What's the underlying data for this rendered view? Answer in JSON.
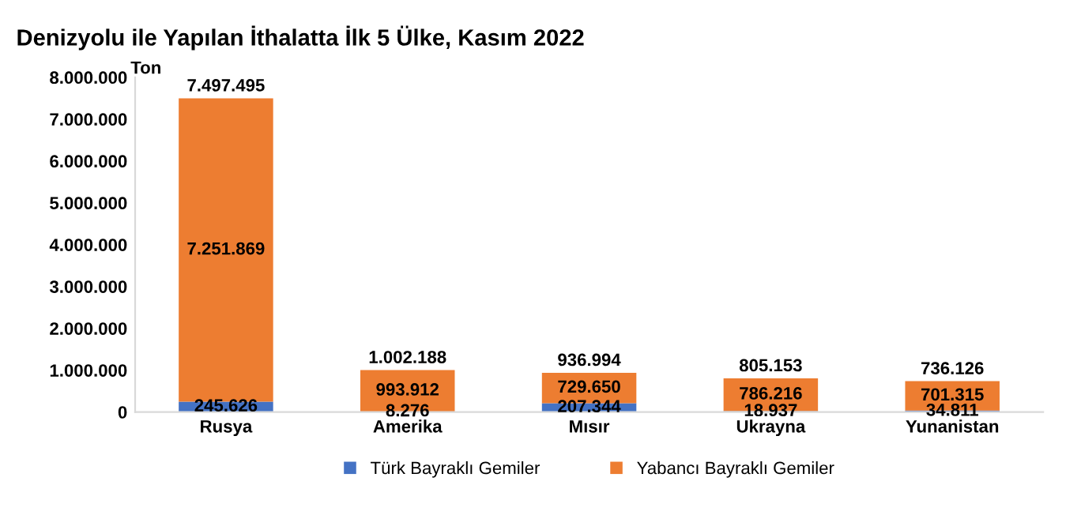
{
  "chart_data": {
    "type": "bar",
    "title": "Denizyolu ile Yapılan İthalatta İlk 5 Ülke, Kasım 2022",
    "ylabel": "Ton",
    "categories": [
      "Rusya",
      "Amerika",
      "Mısır",
      "Ukrayna",
      "Yunanistan"
    ],
    "stacked": true,
    "series": [
      {
        "name": "Türk Bayraklı Gemiler",
        "color": "#4472c4",
        "values": [
          245626,
          8276,
          207344,
          18937,
          34811
        ],
        "value_labels": [
          "245.626",
          "8.276",
          "207.344",
          "18.937",
          "34.811"
        ]
      },
      {
        "name": "Yabancı Bayraklı Gemiler",
        "color": "#ed7d31",
        "values": [
          7251869,
          993912,
          729650,
          786216,
          701315
        ],
        "value_labels": [
          "7.251.869",
          "993.912",
          "729.650",
          "786.216",
          "701.315"
        ]
      }
    ],
    "totals": [
      "7.497.495",
      "1.002.188",
      "936.994",
      "805.153",
      "736.126"
    ],
    "ylim": [
      0,
      8000000
    ],
    "yticks": [
      {
        "value": 0,
        "label": "0"
      },
      {
        "value": 1000000,
        "label": "1.000.000"
      },
      {
        "value": 2000000,
        "label": "2.000.000"
      },
      {
        "value": 3000000,
        "label": "3.000.000"
      },
      {
        "value": 4000000,
        "label": "4.000.000"
      },
      {
        "value": 5000000,
        "label": "5.000.000"
      },
      {
        "value": 6000000,
        "label": "6.000.000"
      },
      {
        "value": 7000000,
        "label": "7.000.000"
      },
      {
        "value": 8000000,
        "label": "8.000.000"
      }
    ],
    "legend": "bottom",
    "grid": false
  }
}
